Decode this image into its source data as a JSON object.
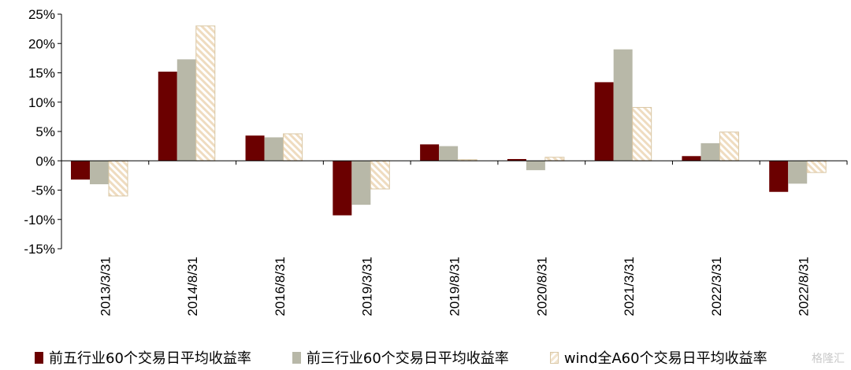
{
  "chart_data": {
    "type": "bar",
    "categories": [
      "2013/3/31",
      "2014/8/31",
      "2016/8/31",
      "2019/3/31",
      "2019/8/31",
      "2020/8/31",
      "2021/3/31",
      "2022/3/31",
      "2022/8/31"
    ],
    "series": [
      {
        "name": "前五行业60个交易日平均收益率",
        "values": [
          -3.2,
          15.2,
          4.3,
          -9.3,
          2.8,
          0.3,
          13.4,
          0.8,
          -5.3
        ],
        "color": "#6b0000"
      },
      {
        "name": "前三行业60个交易日平均收益率",
        "values": [
          -4.0,
          17.3,
          4.0,
          -7.5,
          2.5,
          -1.6,
          19.0,
          3.0,
          -3.9
        ],
        "color": "#b8b8a8"
      },
      {
        "name": "wind全A60个交易日平均收益率",
        "values": [
          -6.0,
          23.0,
          4.6,
          -4.8,
          0.2,
          0.6,
          9.1,
          4.9,
          -2.0
        ],
        "color": "#f3e6d0",
        "pattern": "diagonal-hatch"
      }
    ],
    "y_ticks": [
      "25%",
      "20%",
      "15%",
      "10%",
      "5%",
      "0%",
      "-5%",
      "-10%",
      "-15%"
    ],
    "ylim": [
      -15,
      25
    ],
    "grid": false,
    "legend_position": "bottom"
  },
  "watermark": "格隆汇"
}
